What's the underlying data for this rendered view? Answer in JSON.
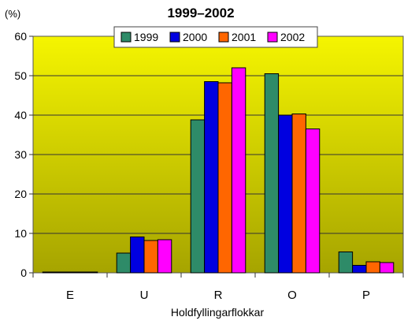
{
  "chart_data": {
    "type": "bar",
    "title": "1999–2002",
    "ylabel": "(%)",
    "xlabel": "Holdfyllingarflokkar",
    "categories": [
      "E",
      "U",
      "R",
      "O",
      "P"
    ],
    "ylim": [
      0,
      60
    ],
    "yticks": [
      0,
      10,
      20,
      30,
      40,
      50,
      60
    ],
    "grid": true,
    "legend_position": "top",
    "background_gradient": [
      "#f5f500",
      "#a6a400"
    ],
    "series": [
      {
        "name": "1999",
        "color": "#2e8b68",
        "values": [
          0.2,
          5.0,
          38.8,
          50.5,
          5.3
        ]
      },
      {
        "name": "2000",
        "color": "#0000e0",
        "values": [
          0.2,
          9.1,
          48.5,
          40.0,
          1.9
        ]
      },
      {
        "name": "2001",
        "color": "#ff6600",
        "values": [
          0.2,
          8.2,
          48.2,
          40.3,
          2.8
        ]
      },
      {
        "name": "2002",
        "color": "#ff00ff",
        "values": [
          0.2,
          8.4,
          52.0,
          36.5,
          2.6
        ]
      }
    ]
  }
}
